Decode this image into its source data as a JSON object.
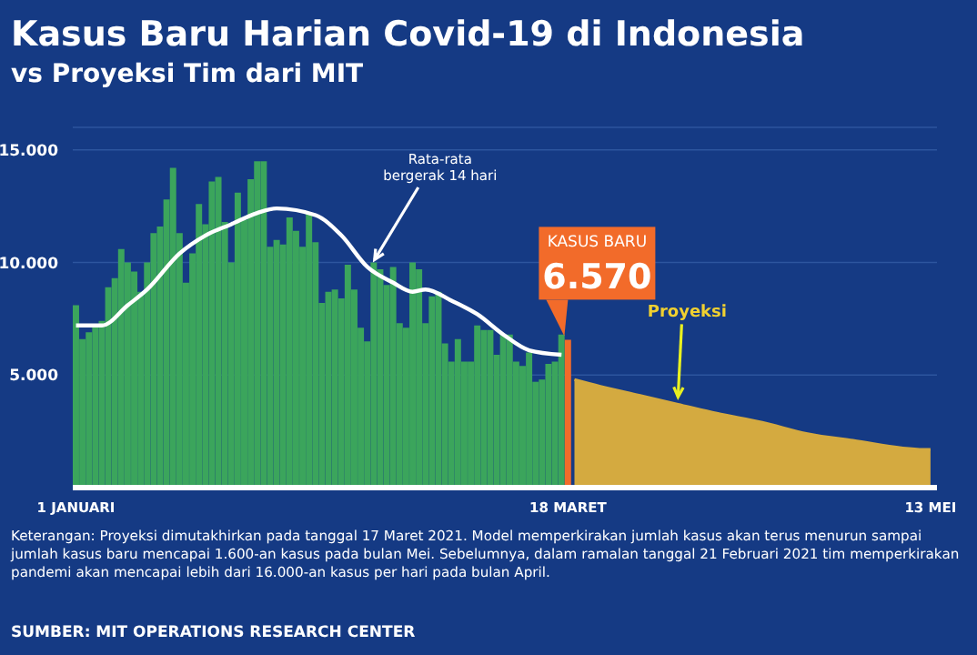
{
  "chart_data": {
    "type": "bar",
    "title": "Kasus Baru Harian Covid-19 di Indonesia",
    "subtitle": "vs Proyeksi Tim dari MIT",
    "annotations": [
      "KASUS BARU",
      "Keterangan:  Proyeksi dimutakhirkan pada tanggal 17 Maret 2021. Model memperkirakan jumlah kasus akan terus menurun sampai jumlah kasus baru mencapai 1.600-an kasus pada bulan Mei. Sebelumnya, dalam ramalan tanggal 21 Februari 2021 tim memperkirakan pandemi akan mencapai lebih dari 16.000-an kasus per hari pada bulan April.",
      "SUMBER: MIT OPERATIONS RESEARCH CENTER"
    ],
    "xlim": [
      "2020-12-31T12:00",
      "2021-05-14"
    ],
    "xticks": [
      {
        "value": "2021-01-01",
        "label": "1 JANUARI"
      },
      {
        "value": "2021-03-18",
        "label": "18 MARET"
      },
      {
        "value": "2021-05-13",
        "label": "13 MEI"
      }
    ],
    "ylim": [
      0,
      16000
    ],
    "yticks": [
      {
        "value": 5000,
        "label": "5.000"
      },
      {
        "value": 10000,
        "label": "10.000"
      },
      {
        "value": 15000,
        "label": "15.000"
      }
    ],
    "grid": "y",
    "series": [
      {
        "color": "#3ba55c",
        "x": [
          "2021-01-01",
          "2021-01-02",
          "2021-01-03",
          "2021-01-04",
          "2021-01-05",
          "2021-01-06",
          "2021-01-07",
          "2021-01-08",
          "2021-01-09",
          "2021-01-10",
          "2021-01-11",
          "2021-01-12",
          "2021-01-13",
          "2021-01-14",
          "2021-01-15",
          "2021-01-16",
          "2021-01-17",
          "2021-01-18",
          "2021-01-19",
          "2021-01-20",
          "2021-01-21",
          "2021-01-22",
          "2021-01-23",
          "2021-01-24",
          "2021-01-25",
          "2021-01-26",
          "2021-01-27",
          "2021-01-28",
          "2021-01-29",
          "2021-01-30",
          "2021-01-31",
          "2021-02-01",
          "2021-02-02",
          "2021-02-03",
          "2021-02-04",
          "2021-02-05",
          "2021-02-06",
          "2021-02-07",
          "2021-02-08",
          "2021-02-09",
          "2021-02-10",
          "2021-02-11",
          "2021-02-12",
          "2021-02-13",
          "2021-02-14",
          "2021-02-15",
          "2021-02-16",
          "2021-02-17",
          "2021-02-18",
          "2021-02-19",
          "2021-02-20",
          "2021-02-21",
          "2021-02-22",
          "2021-02-23",
          "2021-02-24",
          "2021-02-25",
          "2021-02-26",
          "2021-02-27",
          "2021-02-28",
          "2021-03-01",
          "2021-03-02",
          "2021-03-03",
          "2021-03-04",
          "2021-03-05",
          "2021-03-06",
          "2021-03-07",
          "2021-03-08",
          "2021-03-09",
          "2021-03-10",
          "2021-03-11",
          "2021-03-12",
          "2021-03-13",
          "2021-03-14",
          "2021-03-15",
          "2021-03-16",
          "2021-03-17",
          "2021-03-18"
        ],
        "values": [
          8100,
          6600,
          6900,
          7200,
          7400,
          8900,
          9300,
          10600,
          10000,
          9600,
          8700,
          10000,
          11300,
          11600,
          12800,
          14200,
          11300,
          9100,
          10400,
          12600,
          11700,
          13600,
          13800,
          11800,
          10000,
          13100,
          11900,
          13700,
          14500,
          14500,
          10700,
          11000,
          10800,
          12000,
          11400,
          10700,
          12200,
          10900,
          8200,
          8700,
          8800,
          8400,
          9900,
          8800,
          7100,
          6500,
          10000,
          9700,
          9000,
          9800,
          7300,
          7100,
          10000,
          9700,
          7300,
          8500,
          8700,
          6400,
          5600,
          6600,
          5600,
          5600,
          7200,
          7000,
          7000,
          5900,
          6800,
          6800,
          5600,
          5400,
          6000,
          4700,
          4800,
          5500,
          5600,
          6800,
          6570
        ],
        "colors": [
          "#3ba55c",
          "#3ba55c",
          "#3ba55c",
          "#3ba55c",
          "#3ba55c",
          "#3ba55c",
          "#3ba55c",
          "#3ba55c",
          "#3ba55c",
          "#3ba55c",
          "#3ba55c",
          "#3ba55c",
          "#3ba55c",
          "#3ba55c",
          "#3ba55c",
          "#3ba55c",
          "#3ba55c",
          "#3ba55c",
          "#3ba55c",
          "#3ba55c",
          "#3ba55c",
          "#3ba55c",
          "#3ba55c",
          "#3ba55c",
          "#3ba55c",
          "#3ba55c",
          "#3ba55c",
          "#3ba55c",
          "#3ba55c",
          "#3ba55c",
          "#3ba55c",
          "#3ba55c",
          "#3ba55c",
          "#3ba55c",
          "#3ba55c",
          "#3ba55c",
          "#3ba55c",
          "#3ba55c",
          "#3ba55c",
          "#3ba55c",
          "#3ba55c",
          "#3ba55c",
          "#3ba55c",
          "#3ba55c",
          "#3ba55c",
          "#3ba55c",
          "#3ba55c",
          "#3ba55c",
          "#3ba55c",
          "#3ba55c",
          "#3ba55c",
          "#3ba55c",
          "#3ba55c",
          "#3ba55c",
          "#3ba55c",
          "#3ba55c",
          "#3ba55c",
          "#3ba55c",
          "#3ba55c",
          "#3ba55c",
          "#3ba55c",
          "#3ba55c",
          "#3ba55c",
          "#3ba55c",
          "#3ba55c",
          "#3ba55c",
          "#3ba55c",
          "#3ba55c",
          "#3ba55c",
          "#3ba55c",
          "#3ba55c",
          "#3ba55c",
          "#3ba55c",
          "#3ba55c",
          "#3ba55c",
          "#3ba55c",
          "#f26b2a"
        ],
        "value_labels": [
          null,
          null,
          null,
          null,
          null,
          null,
          null,
          null,
          null,
          null,
          null,
          null,
          null,
          null,
          null,
          null,
          null,
          null,
          null,
          null,
          null,
          null,
          null,
          null,
          null,
          null,
          null,
          null,
          null,
          null,
          null,
          null,
          null,
          null,
          null,
          null,
          null,
          null,
          null,
          null,
          null,
          null,
          null,
          null,
          null,
          null,
          null,
          null,
          null,
          null,
          null,
          null,
          null,
          null,
          null,
          null,
          null,
          null,
          null,
          null,
          null,
          null,
          null,
          null,
          null,
          null,
          null,
          null,
          null,
          null,
          null,
          null,
          null,
          null,
          null,
          null,
          "6.570"
        ]
      },
      {
        "type": "line",
        "name": "Rata-rata bergerak 14 hari",
        "color": "#ffffff",
        "x": [
          "2021-01-01",
          "2021-01-05",
          "2021-01-09",
          "2021-01-12",
          "2021-01-17",
          "2021-01-21",
          "2021-01-25",
          "2021-01-29",
          "2021-02-01",
          "2021-02-07",
          "2021-02-11",
          "2021-02-15",
          "2021-02-19",
          "2021-02-22",
          "2021-02-24",
          "2021-02-28",
          "2021-03-04",
          "2021-03-08",
          "2021-03-12",
          "2021-03-17"
        ],
        "values": [
          7200,
          7200,
          8100,
          8800,
          10400,
          11200,
          11700,
          12200,
          12400,
          12100,
          11200,
          9800,
          9100,
          8700,
          8800,
          8300,
          7700,
          6800,
          6100,
          5900
        ]
      },
      {
        "type": "area",
        "name": "Proyeksi",
        "color": "#d4aa40",
        "x": [
          "2021-03-19",
          "2021-03-23",
          "2021-03-29",
          "2021-04-04",
          "2021-04-10",
          "2021-04-17",
          "2021-04-24",
          "2021-05-01",
          "2021-05-12",
          "2021-05-13"
        ],
        "values": [
          4800,
          4500,
          4100,
          3700,
          3300,
          2900,
          2400,
          2100,
          1700,
          1700
        ]
      }
    ]
  }
}
